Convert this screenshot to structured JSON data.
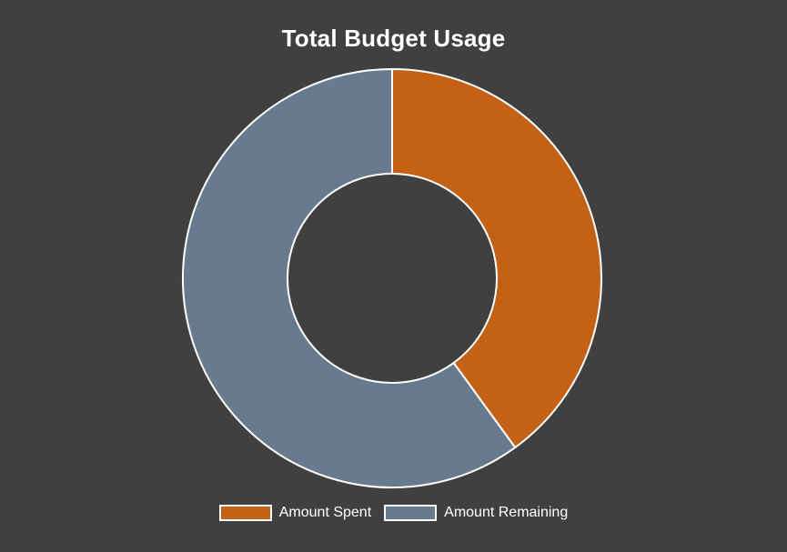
{
  "chart_data": {
    "type": "pie",
    "variant": "doughnut",
    "title": "Total Budget Usage",
    "labels": [
      "Amount Spent",
      "Amount Remaining"
    ],
    "values": [
      40,
      60
    ],
    "colors": [
      "#c36217",
      "#687b8e"
    ],
    "border_color": "#ffffff",
    "legend": "bottom",
    "background": "#404040"
  }
}
